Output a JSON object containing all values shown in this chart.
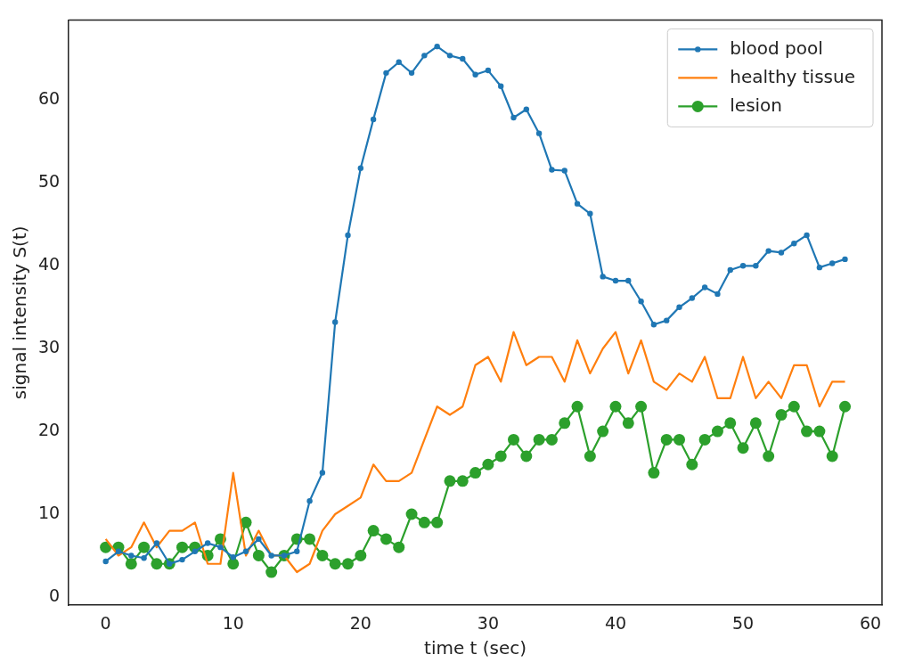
{
  "chart_data": {
    "type": "line",
    "xlabel": "time t (sec)",
    "ylabel": "signal intensity S(t)",
    "x": [
      0,
      1,
      2,
      3,
      4,
      5,
      6,
      7,
      8,
      9,
      10,
      11,
      12,
      13,
      14,
      15,
      16,
      17,
      18,
      19,
      20,
      21,
      22,
      23,
      24,
      25,
      26,
      27,
      28,
      29,
      30,
      31,
      32,
      33,
      34,
      35,
      36,
      37,
      38,
      39,
      40,
      41,
      42,
      43,
      44,
      45,
      46,
      47,
      48,
      49,
      50,
      51,
      52,
      53,
      54,
      55,
      56,
      57,
      58
    ],
    "series": [
      {
        "name": "blood pool",
        "color": "#1f77b4",
        "marker": "circle",
        "values": [
          4.3,
          5.5,
          5,
          4.7,
          6.5,
          4,
          4.5,
          5.5,
          6.5,
          6,
          4.8,
          5.5,
          7,
          5,
          5,
          5.5,
          11.6,
          15,
          33.2,
          43.7,
          51.8,
          57.7,
          63.3,
          64.6,
          63.3,
          65.4,
          66.5,
          65.4,
          65,
          63.1,
          63.6,
          61.7,
          57.9,
          58.9,
          56,
          51.6,
          51.5,
          47.5,
          46.3,
          38.7,
          38.2,
          38.2,
          35.7,
          32.9,
          33.4,
          35,
          36.1,
          37.4,
          36.6,
          39.5,
          40,
          40,
          41.8,
          41.6,
          42.7,
          43.7,
          39.8,
          40.3,
          40.8
        ]
      },
      {
        "name": "healthy tissue",
        "color": "#ff7f0e",
        "marker": "none",
        "values": [
          7,
          5,
          6,
          9,
          6,
          8,
          8,
          9,
          4,
          4,
          15,
          5,
          8,
          5,
          5,
          3,
          4,
          8,
          10,
          11,
          12,
          16,
          14,
          14,
          15,
          19,
          23,
          22,
          23,
          28,
          29,
          26,
          32,
          28,
          29,
          29,
          26,
          31,
          27,
          30,
          32,
          27,
          31,
          26,
          25,
          27,
          26,
          29,
          24,
          24,
          29,
          24,
          26,
          24,
          28,
          28,
          23,
          26,
          26
        ]
      },
      {
        "name": "lesion",
        "color": "#2ca02c",
        "marker": "circle",
        "values": [
          6,
          6,
          4,
          6,
          4,
          4,
          6,
          6,
          5,
          7,
          4,
          9,
          5,
          3,
          5,
          7,
          7,
          5,
          4,
          4,
          5,
          8,
          7,
          6,
          10,
          9,
          9,
          14,
          14,
          15,
          16,
          17,
          19,
          17,
          19,
          19,
          21,
          23,
          17,
          20,
          23,
          21,
          23,
          15,
          19,
          19,
          16,
          19,
          20,
          21,
          18,
          21,
          17,
          22,
          23,
          20,
          20,
          17,
          23
        ]
      }
    ],
    "xlim": [
      -2.9,
      60.9
    ],
    "xticks": [
      0,
      10,
      20,
      30,
      40,
      50,
      60
    ],
    "ylim": [
      -1,
      69.7
    ],
    "yticks": [
      0,
      10,
      20,
      30,
      40,
      50,
      60
    ],
    "grid": false,
    "legend": "top right",
    "line_style": "solid"
  }
}
